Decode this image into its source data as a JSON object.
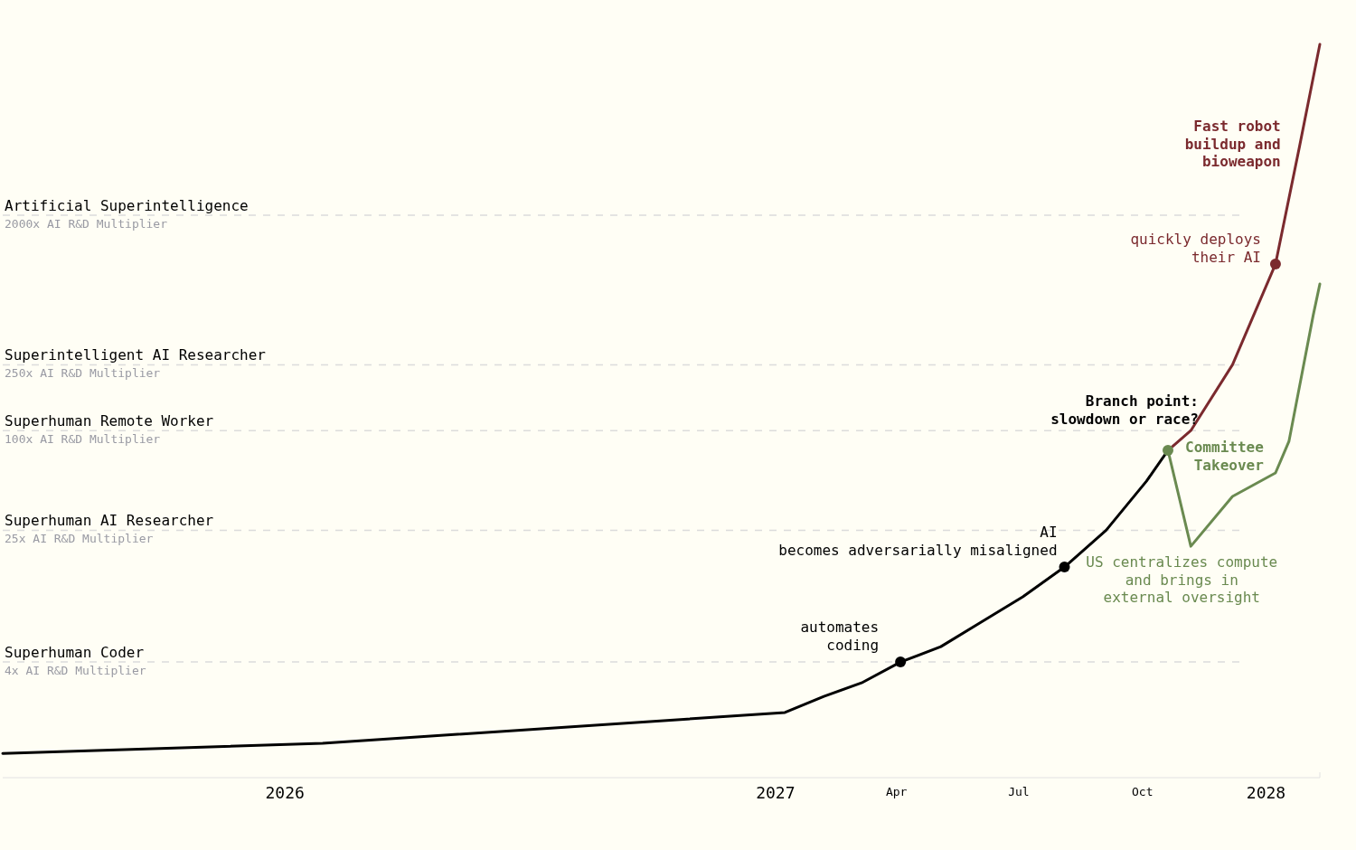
{
  "chart_data": {
    "type": "line",
    "xlim": [
      "2025-06-05",
      "2028-02-10"
    ],
    "xticks": [
      {
        "value": "2026-01-01",
        "label": "2026"
      },
      {
        "value": "2027-01-01",
        "label": "2027"
      },
      {
        "value": "2027-04-01",
        "label": "Apr"
      },
      {
        "value": "2027-07-01",
        "label": "Jul"
      },
      {
        "value": "2027-10-01",
        "label": "Oct"
      },
      {
        "value": "2028-01-01",
        "label": "2028"
      }
    ],
    "ylim": [
      0.8,
      40000
    ],
    "log": true,
    "tick_labels": "x",
    "series": [
      {
        "color": "#000000",
        "x": [
          "2025-06-05",
          "2026-01-29",
          "2027-01-08",
          "2027-02-06",
          "2027-03-06",
          "2027-04-04",
          "2027-05-04",
          "2027-06-03",
          "2027-07-04",
          "2027-08-04",
          "2027-09-04",
          "2027-10-04",
          "2027-10-20"
        ],
        "values": [
          1.12,
          1.29,
          1.98,
          2.48,
          2.99,
          4,
          4.95,
          6.96,
          9.9,
          15,
          25,
          49.5,
          76
        ]
      },
      {
        "color": "#7b2a2e",
        "x": [
          "2027-10-20",
          "2027-11-06",
          "2027-12-07",
          "2028-01-08",
          "2028-01-26",
          "2028-02-10"
        ],
        "values": [
          76,
          100,
          250,
          1014,
          5270,
          21600
        ]
      },
      {
        "color": "#6a8a50",
        "x": [
          "2027-10-20",
          "2027-11-06",
          "2027-12-07",
          "2028-01-08",
          "2028-01-18",
          "2028-02-05",
          "2028-02-10"
        ],
        "values": [
          76,
          20,
          40,
          55.5,
          86,
          495,
          769
        ]
      },
      {
        "type": "scatter",
        "color": "#000000",
        "x": [
          "2027-04-04",
          "2027-08-04"
        ],
        "values": [
          4,
          15
        ]
      },
      {
        "type": "scatter",
        "color": "#6a8a50",
        "x": [
          "2027-10-20"
        ],
        "values": [
          76
        ]
      },
      {
        "type": "scatter",
        "color": "#7b2a2e",
        "x": [
          "2028-01-08"
        ],
        "values": [
          1014
        ]
      }
    ],
    "ref_lines": [
      {
        "axis": "y",
        "value": 4,
        "label": "Superhuman Coder\n4x AI R&D Multiplier"
      },
      {
        "axis": "y",
        "value": 25,
        "label": "Superhuman AI Researcher\n25x AI R&D Multiplier"
      },
      {
        "axis": "y",
        "value": 100,
        "label": "Superhuman Remote Worker\n100x AI R&D Multiplier"
      },
      {
        "axis": "y",
        "value": 250,
        "label": "Superintelligent AI Researcher\n250x AI R&D Multiplier"
      },
      {
        "axis": "y",
        "value": 2000,
        "label": "Artificial Superintelligence\n2000x AI R&D Multiplier"
      }
    ],
    "annotations": [
      {
        "text": "automates\ncoding",
        "x": "2027-04-04",
        "y": 4
      },
      {
        "text": "AI\nbecomes adversarially misaligned",
        "x": "2027-08-04",
        "y": 15
      },
      {
        "text": "Branch point:\nslowdown or race?",
        "x": "2027-10-20",
        "y": 76
      },
      {
        "text": "US centralizes compute\nand brings in\nexternal oversight",
        "x": "2027-11-06",
        "y": 20
      },
      {
        "text": "Committee\nTakeover",
        "x": "2028-01-18",
        "y": 86
      },
      {
        "text": "quickly deploys\ntheir AI",
        "x": "2028-01-08",
        "y": 1014
      },
      {
        "text": "Fast robot\nbuildup and\nbioweapon",
        "x": "2028-01-26",
        "y": 5270
      }
    ]
  }
}
